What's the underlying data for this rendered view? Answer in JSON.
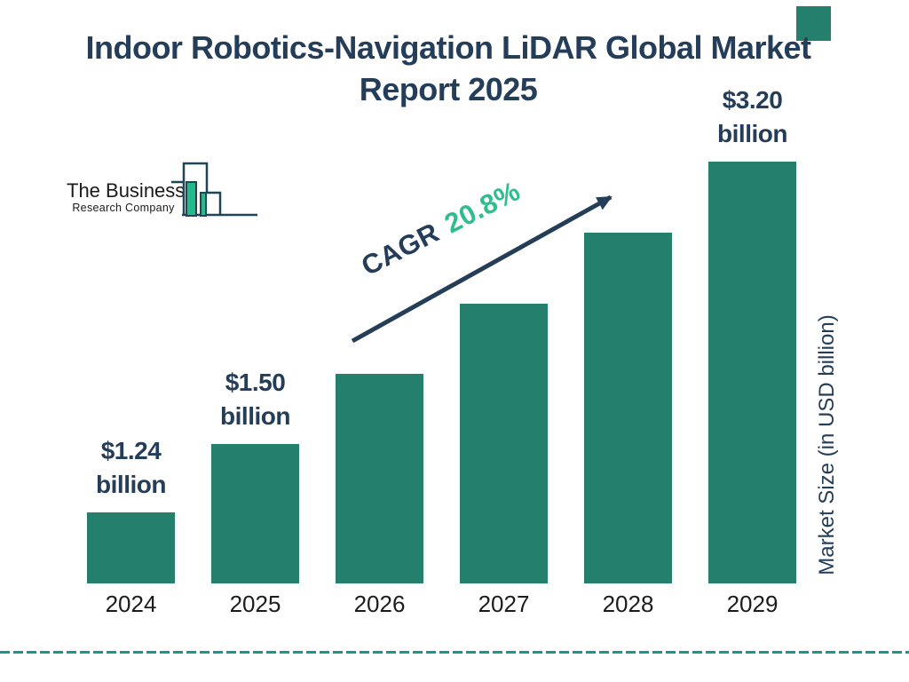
{
  "header": {
    "title": "Indoor Robotics-Navigation LiDAR Global Market Report 2025"
  },
  "logo": {
    "line1": "The Business",
    "line2": "Research Company"
  },
  "cagr": {
    "prefix": "CAGR",
    "value": "20.8%"
  },
  "axis": {
    "y_label": "Market Size (in USD billion)"
  },
  "colors": {
    "bar_teal": "#24806c",
    "navy": "#243d59",
    "cagr_green": "#2ebd8c",
    "dash_teal": "#18988c",
    "logo_green": "#26b98a",
    "logo_outline": "#1d4757"
  },
  "chart_data": {
    "type": "bar",
    "title": "Indoor Robotics-Navigation LiDAR Global Market Report 2025",
    "xlabel": "",
    "ylabel": "Market Size (in USD billion)",
    "cagr": "20.8%",
    "legend": "none",
    "grid": "off",
    "categories": [
      "2024",
      "2025",
      "2026",
      "2027",
      "2028",
      "2029"
    ],
    "values": [
      1.24,
      1.5,
      1.81,
      2.19,
      2.65,
      3.2
    ],
    "bars": [
      {
        "year": "2024",
        "value": 1.24,
        "labeled": true,
        "label": [
          "$1.24",
          "billion"
        ]
      },
      {
        "year": "2025",
        "value": 1.5,
        "labeled": true,
        "label": [
          "$1.50",
          "billion"
        ]
      },
      {
        "year": "2026",
        "value": 1.81,
        "labeled": false,
        "label": null
      },
      {
        "year": "2027",
        "value": 2.19,
        "labeled": false,
        "label": null
      },
      {
        "year": "2028",
        "value": 2.65,
        "labeled": false,
        "label": null
      },
      {
        "year": "2029",
        "value": 3.2,
        "labeled": true,
        "label": [
          "$3.20",
          "billion"
        ]
      }
    ]
  }
}
